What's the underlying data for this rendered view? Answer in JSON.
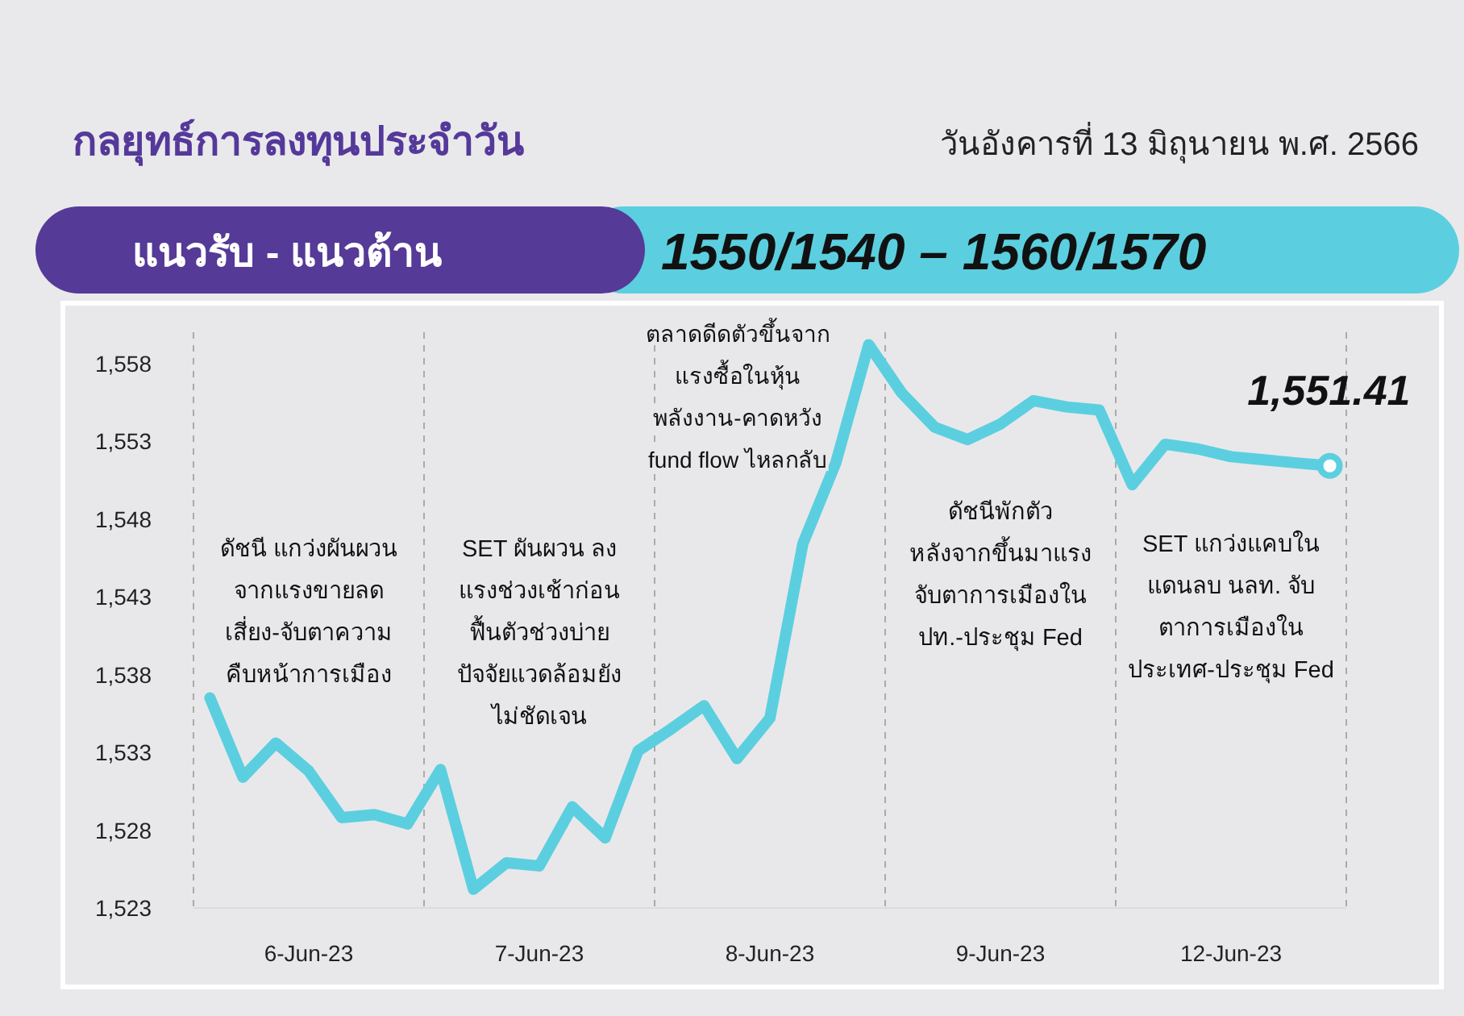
{
  "chart_data": {
    "type": "line",
    "title": "กลยุทธ์การลงทุนประจำวัน",
    "subtitle": "วันอังคารที่ 13 มิถุนายน พ.ศ. 2566",
    "annotations": [
      "แนวรับ - แนวต้าน",
      "1550/1540 – 1560/1570",
      "ดัชนี แกว่งผันผวน\nจากแรงขายลด\nเสี่ยง-จับตาความ\nคืบหน้าการเมือง",
      "SET ผันผวน ลง\nแรงช่วงเช้าก่อน\nฟื้นตัวช่วงบ่าย\nปัจจัยแวดล้อมยัง\nไม่ชัดเจน",
      "ตลาดดีดตัวขึ้นจาก\nแรงซื้อในหุ้น\nพลังงาน-คาดหวัง\nfund flow ไหลกลับ",
      "ดัชนีพักตัว\nหลังจากขึ้นมาแรง\nจับตาการเมืองใน\nปท.-ประชุม Fed",
      "SET  แกว่งแคบใน\nแดนลบ นลท. จับ\nตาการเมืองใน\nประเทศ-ประชุม Fed"
    ],
    "categories": [
      null,
      null,
      null,
      "6-Jun-23",
      null,
      null,
      null,
      null,
      null,
      null,
      "7-Jun-23",
      null,
      null,
      null,
      null,
      null,
      null,
      "8-Jun-23",
      null,
      null,
      null,
      null,
      null,
      null,
      "9-Jun-23",
      null,
      null,
      null,
      null,
      null,
      null,
      "12-Jun-23",
      null,
      null,
      null
    ],
    "series": [
      {
        "color": "#5bcfdf",
        "values": [
          1536.5,
          1531.4,
          1533.6,
          1531.8,
          1528.8,
          1529.0,
          1528.4,
          1531.9,
          1524.2,
          1525.9,
          1525.7,
          1529.5,
          1527.5,
          1533.1,
          1534.5,
          1536.0,
          1532.6,
          1535.2,
          1546.4,
          1551.6,
          1559.2,
          1556.1,
          1553.9,
          1553.1,
          1554.1,
          1555.6,
          1555.2,
          1555.0,
          1550.2,
          1552.8,
          1552.5,
          1552.0,
          1551.8,
          1551.6,
          1551.41
        ],
        "value_labels": [
          null,
          null,
          null,
          null,
          null,
          null,
          null,
          null,
          null,
          null,
          null,
          null,
          null,
          null,
          null,
          null,
          null,
          null,
          null,
          null,
          null,
          null,
          null,
          null,
          null,
          null,
          null,
          null,
          null,
          null,
          null,
          null,
          null,
          null,
          "1,551.41"
        ]
      }
    ],
    "ylim": [
      1523,
      1560
    ],
    "yticks": [
      {
        "value": 1523,
        "label": "1,523"
      },
      {
        "value": 1528,
        "label": "1,528"
      },
      {
        "value": 1533,
        "label": "1,533"
      },
      {
        "value": 1538,
        "label": "1,538"
      },
      {
        "value": 1543,
        "label": "1,543"
      },
      {
        "value": 1548,
        "label": "1,548"
      },
      {
        "value": 1553,
        "label": "1,553"
      },
      {
        "value": 1558,
        "label": "1,558"
      }
    ],
    "grid": false
  }
}
